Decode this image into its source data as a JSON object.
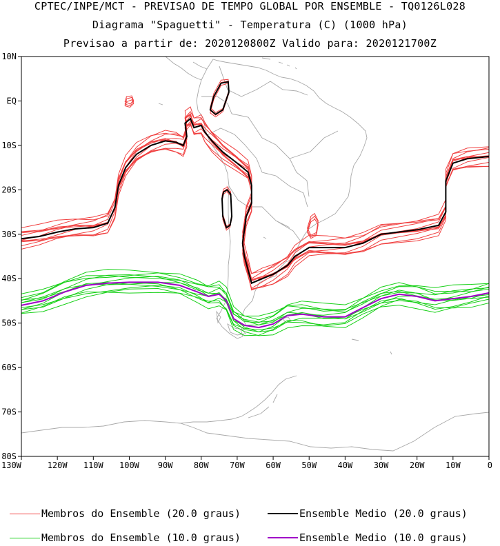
{
  "header": {
    "line1": "CPTEC/INPE/MCT - PREVISAO DE TEMPO GLOBAL POR ENSEMBLE - TQ0126L028",
    "line2": "Diagrama \"Spaguetti\" - Temperatura (C) (1000 hPa)",
    "line3": "Previsao a partir de: 2020120800Z  Valido para: 2020121700Z"
  },
  "map": {
    "lat_labels": [
      "10N",
      "EQ",
      "10S",
      "20S",
      "30S",
      "40S",
      "50S",
      "60S",
      "70S",
      "80S"
    ],
    "lat_values": [
      10,
      0,
      -10,
      -20,
      -30,
      -40,
      -50,
      -60,
      -70,
      -80
    ],
    "lon_labels": [
      "130W",
      "120W",
      "110W",
      "100W",
      "90W",
      "80W",
      "70W",
      "60W",
      "50W",
      "40W",
      "30W",
      "20W",
      "10W",
      "0"
    ],
    "lon_values": [
      -130,
      -120,
      -110,
      -100,
      -90,
      -80,
      -70,
      -60,
      -50,
      -40,
      -30,
      -20,
      -10,
      0
    ],
    "lon_range": [
      -130,
      0
    ],
    "lat_range": [
      -80,
      10
    ],
    "colors": {
      "members_20": "#f04040",
      "mean_20": "#000000",
      "members_10": "#16d016",
      "mean_10": "#a000c8",
      "coast": "#a8a8a8"
    },
    "mean_20": [
      [
        -130,
        -31
      ],
      [
        -125,
        -30.5
      ],
      [
        -120,
        -29.5
      ],
      [
        -115,
        -28.8
      ],
      [
        -110,
        -28.5
      ],
      [
        -106,
        -27.5
      ],
      [
        -104,
        -24
      ],
      [
        -103,
        -19
      ],
      [
        -101,
        -15
      ],
      [
        -98,
        -12
      ],
      [
        -94,
        -10
      ],
      [
        -90,
        -9
      ],
      [
        -87,
        -9.3
      ],
      [
        -85,
        -10
      ],
      [
        -84,
        -8
      ],
      [
        -84.5,
        -5
      ],
      [
        -83,
        -4
      ],
      [
        -82,
        -6
      ],
      [
        -80,
        -5.5
      ],
      [
        -79,
        -7
      ],
      [
        -77,
        -9
      ],
      [
        -74,
        -11.5
      ],
      [
        -70,
        -14
      ],
      [
        -67,
        -16
      ],
      [
        -66,
        -19
      ],
      [
        -66,
        -23
      ],
      [
        -67.5,
        -26
      ],
      [
        -68,
        -29
      ],
      [
        -68.5,
        -32
      ],
      [
        -68,
        -35
      ],
      [
        -67,
        -38
      ],
      [
        -66,
        -41
      ],
      [
        -63,
        -40
      ],
      [
        -60,
        -39
      ],
      [
        -56,
        -37
      ],
      [
        -54,
        -35
      ],
      [
        -50,
        -33
      ],
      [
        -45,
        -33
      ],
      [
        -40,
        -33
      ],
      [
        -35,
        -32
      ],
      [
        -30,
        -30
      ],
      [
        -20,
        -29
      ],
      [
        -14,
        -28
      ],
      [
        -12,
        -25
      ],
      [
        -12,
        -18
      ],
      [
        -10,
        -14
      ],
      [
        -6,
        -13
      ],
      [
        0,
        -12.5
      ]
    ],
    "mean_10": [
      [
        -130,
        -46
      ],
      [
        -124,
        -45
      ],
      [
        -118,
        -43
      ],
      [
        -112,
        -41.5
      ],
      [
        -106,
        -41
      ],
      [
        -100,
        -40.8
      ],
      [
        -92,
        -40.8
      ],
      [
        -86,
        -41.5
      ],
      [
        -81,
        -43
      ],
      [
        -78,
        -44
      ],
      [
        -75,
        -43.5
      ],
      [
        -73,
        -45
      ],
      [
        -71,
        -49
      ],
      [
        -68,
        -50.5
      ],
      [
        -64,
        -51
      ],
      [
        -60,
        -50.2
      ],
      [
        -56,
        -48.3
      ],
      [
        -52,
        -48
      ],
      [
        -46,
        -48.6
      ],
      [
        -40,
        -48.6
      ],
      [
        -35,
        -46.5
      ],
      [
        -30,
        -44.5
      ],
      [
        -25,
        -43.5
      ],
      [
        -20,
        -44
      ],
      [
        -15,
        -45
      ],
      [
        -10,
        -44.5
      ],
      [
        -5,
        -44
      ],
      [
        0,
        -43.2
      ]
    ],
    "islands_20": [
      [
        [
          -74.5,
          4
        ],
        [
          -72.5,
          4.3
        ],
        [
          -72.3,
          2
        ],
        [
          -74,
          -2
        ],
        [
          -76,
          -3
        ],
        [
          -77.5,
          -2
        ],
        [
          -76.5,
          1
        ],
        [
          -74.5,
          4
        ]
      ],
      [
        [
          -72.8,
          -20
        ],
        [
          -71.8,
          -21
        ],
        [
          -71.5,
          -26
        ],
        [
          -72,
          -28
        ],
        [
          -73,
          -28.5
        ],
        [
          -74,
          -26
        ],
        [
          -74.2,
          -22
        ],
        [
          -73.8,
          -20.5
        ],
        [
          -72.8,
          -20
        ]
      ],
      [
        [
          -100.8,
          0.3
        ],
        [
          -99.3,
          0.6
        ],
        [
          -98.8,
          -0.3
        ],
        [
          -99.8,
          -1
        ],
        [
          -101.2,
          -0.5
        ],
        [
          -100.8,
          0.3
        ]
      ],
      [
        [
          -48.5,
          -26
        ],
        [
          -47.5,
          -27.5
        ],
        [
          -48,
          -30
        ],
        [
          -49.5,
          -30.5
        ],
        [
          -50.5,
          -29
        ],
        [
          -49.5,
          -26.5
        ],
        [
          -48.5,
          -26
        ]
      ]
    ]
  },
  "legend": {
    "members_20": "Membros do Ensemble (20.0 graus)",
    "mean_20": "Ensemble Medio (20.0 graus)",
    "members_10": "Membros do Ensemble (10.0 graus)",
    "mean_10": "Ensemble Medio (10.0 graus)"
  }
}
